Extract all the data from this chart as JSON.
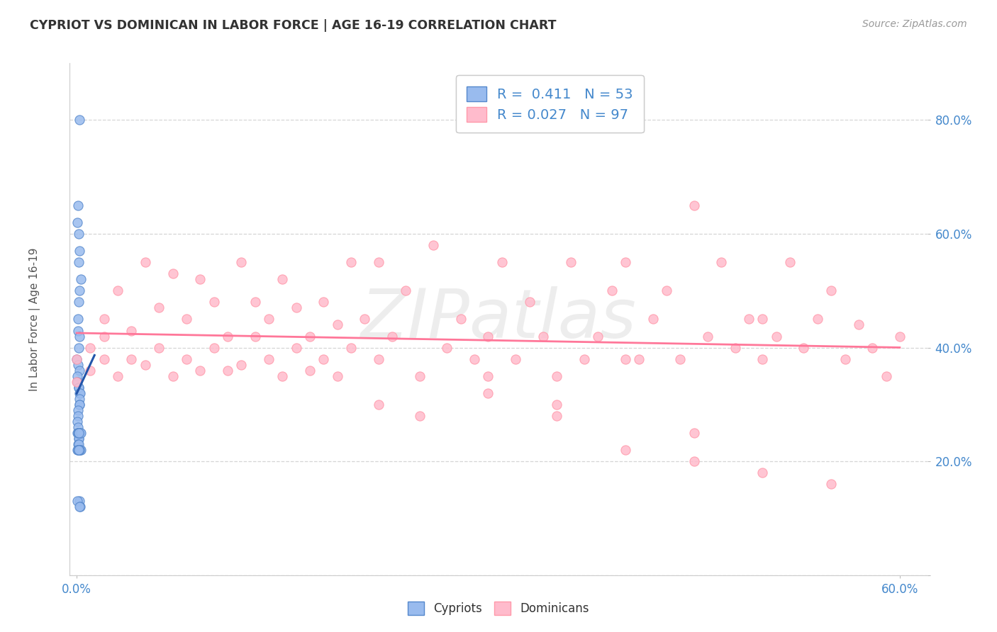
{
  "title": "CYPRIOT VS DOMINICAN IN LABOR FORCE | AGE 16-19 CORRELATION CHART",
  "source_text": "Source: ZipAtlas.com",
  "ylabel": "In Labor Force | Age 16-19",
  "xlim": [
    -0.005,
    0.62
  ],
  "ylim": [
    0.0,
    0.9
  ],
  "xtick_positions": [
    0.0,
    0.6
  ],
  "xticklabels": [
    "0.0%",
    "60.0%"
  ],
  "ytick_positions": [
    0.0,
    0.2,
    0.4,
    0.6,
    0.8
  ],
  "yticklabels": [
    "",
    "20.0%",
    "40.0%",
    "60.0%",
    "80.0%"
  ],
  "cypriot_color": "#99BBEE",
  "dominican_color": "#FFBBCC",
  "cypriot_edge": "#5588CC",
  "dominican_edge": "#FF99AA",
  "trend_cypriot_color": "#2255AA",
  "trend_dominican_color": "#FF7799",
  "R_cypriot": 0.411,
  "N_cypriot": 53,
  "R_dominican": 0.027,
  "N_dominican": 97,
  "legend_label_cypriot": "Cypriots",
  "legend_label_dominican": "Dominicans",
  "watermark": "ZIPatlas",
  "background_color": "#FFFFFF",
  "grid_color": "#CCCCCC",
  "title_color": "#333333",
  "axis_label_color": "#555555",
  "tick_color": "#4488CC",
  "cyp_x_raw": [
    0.0,
    0.0,
    0.0,
    0.0,
    0.0,
    0.0,
    0.0,
    0.0,
    0.0,
    0.0,
    0.0,
    0.0,
    0.0,
    0.0,
    0.0,
    0.0,
    0.0,
    0.0,
    0.0,
    0.0,
    0.0,
    0.0,
    0.0,
    0.0,
    0.0,
    0.0,
    0.0,
    0.0,
    0.0,
    0.0,
    0.0,
    0.0,
    0.0,
    0.0,
    0.0,
    0.0,
    0.0,
    0.0,
    0.0,
    0.0,
    0.0,
    0.0,
    0.0,
    0.0,
    0.0,
    0.0,
    0.0,
    0.0,
    0.0,
    0.0,
    0.0,
    0.0,
    0.0
  ],
  "cyp_y_raw": [
    0.8,
    0.65,
    0.62,
    0.6,
    0.57,
    0.55,
    0.52,
    0.5,
    0.48,
    0.45,
    0.43,
    0.42,
    0.4,
    0.38,
    0.37,
    0.36,
    0.35,
    0.34,
    0.33,
    0.33,
    0.32,
    0.32,
    0.31,
    0.3,
    0.3,
    0.29,
    0.28,
    0.27,
    0.26,
    0.25,
    0.25,
    0.25,
    0.25,
    0.24,
    0.24,
    0.23,
    0.23,
    0.22,
    0.22,
    0.22,
    0.22,
    0.22,
    0.22,
    0.22,
    0.25,
    0.25,
    0.25,
    0.25,
    0.25,
    0.13,
    0.13,
    0.12,
    0.12
  ],
  "dom_x_raw": [
    0.0,
    0.0,
    0.01,
    0.01,
    0.02,
    0.02,
    0.02,
    0.03,
    0.03,
    0.04,
    0.04,
    0.05,
    0.05,
    0.06,
    0.06,
    0.07,
    0.07,
    0.08,
    0.08,
    0.09,
    0.09,
    0.1,
    0.1,
    0.11,
    0.11,
    0.12,
    0.12,
    0.13,
    0.13,
    0.14,
    0.14,
    0.15,
    0.15,
    0.16,
    0.16,
    0.17,
    0.17,
    0.18,
    0.18,
    0.19,
    0.19,
    0.2,
    0.2,
    0.21,
    0.22,
    0.22,
    0.23,
    0.24,
    0.25,
    0.26,
    0.27,
    0.28,
    0.29,
    0.3,
    0.31,
    0.32,
    0.33,
    0.34,
    0.35,
    0.36,
    0.37,
    0.38,
    0.39,
    0.4,
    0.41,
    0.42,
    0.43,
    0.44,
    0.45,
    0.46,
    0.47,
    0.48,
    0.49,
    0.5,
    0.51,
    0.52,
    0.53,
    0.54,
    0.55,
    0.56,
    0.57,
    0.58,
    0.59,
    0.6,
    0.22,
    0.25,
    0.3,
    0.35,
    0.4,
    0.45,
    0.5,
    0.55,
    0.3,
    0.35,
    0.4,
    0.45,
    0.5
  ],
  "dom_y_raw": [
    0.38,
    0.34,
    0.4,
    0.36,
    0.45,
    0.38,
    0.42,
    0.35,
    0.5,
    0.43,
    0.38,
    0.55,
    0.37,
    0.47,
    0.4,
    0.53,
    0.35,
    0.45,
    0.38,
    0.52,
    0.36,
    0.48,
    0.4,
    0.42,
    0.36,
    0.55,
    0.37,
    0.48,
    0.42,
    0.45,
    0.38,
    0.52,
    0.35,
    0.47,
    0.4,
    0.42,
    0.36,
    0.48,
    0.38,
    0.44,
    0.35,
    0.55,
    0.4,
    0.45,
    0.38,
    0.55,
    0.42,
    0.5,
    0.35,
    0.58,
    0.4,
    0.45,
    0.38,
    0.42,
    0.55,
    0.38,
    0.48,
    0.42,
    0.35,
    0.55,
    0.38,
    0.42,
    0.5,
    0.55,
    0.38,
    0.45,
    0.5,
    0.38,
    0.65,
    0.42,
    0.55,
    0.4,
    0.45,
    0.38,
    0.42,
    0.55,
    0.4,
    0.45,
    0.5,
    0.38,
    0.44,
    0.4,
    0.35,
    0.42,
    0.3,
    0.28,
    0.32,
    0.28,
    0.22,
    0.25,
    0.18,
    0.16,
    0.35,
    0.3,
    0.38,
    0.2,
    0.45
  ]
}
